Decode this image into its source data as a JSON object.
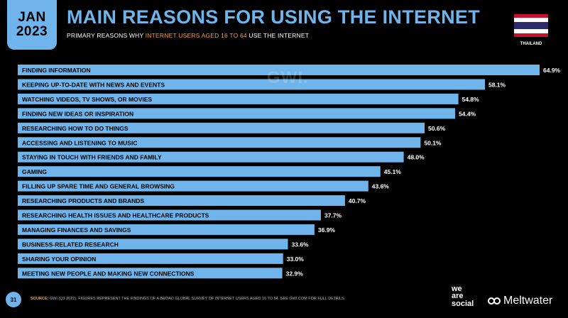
{
  "header": {
    "month": "JAN",
    "year": "2023",
    "title": "MAIN REASONS FOR USING THE INTERNET",
    "subtitle_pre": "PRIMARY REASONS WHY ",
    "subtitle_hl": "INTERNET USERS AGED 16 TO 64",
    "subtitle_post": " USE THE INTERNET",
    "country": "THAILAND"
  },
  "watermark": "GWI.",
  "footer": {
    "page": "31",
    "source_label": "SOURCE:",
    "source_text": " GWI (Q3 2022). FIGURES REPRESENT THE FINDINGS OF A BROAD GLOBAL SURVEY OF INTERNET USERS AGED 16 TO 64. SEE GWI.COM FOR FULL DETAILS.",
    "brand1_line1": "we",
    "brand1_line2": "are",
    "brand1_line3": "social",
    "brand2": "Meltwater"
  },
  "colors": {
    "bar": "#6fb4ea",
    "accent": "#f2a23a",
    "background": "#000000"
  },
  "chart_data": {
    "type": "bar",
    "orientation": "horizontal",
    "categories": [
      "FINDING INFORMATION",
      "KEEPING UP-TO-DATE WITH NEWS AND EVENTS",
      "WATCHING VIDEOS, TV SHOWS, OR MOVIES",
      "FINDING NEW IDEAS OR INSPIRATION",
      "RESEARCHING HOW TO DO THINGS",
      "ACCESSING AND LISTENING TO MUSIC",
      "STAYING IN TOUCH WITH FRIENDS AND FAMILY",
      "GAMING",
      "FILLING UP SPARE TIME AND GENERAL BROWSING",
      "RESEARCHING PRODUCTS AND BRANDS",
      "RESEARCHING HEALTH ISSUES AND HEALTHCARE PRODUCTS",
      "MANAGING FINANCES AND SAVINGS",
      "BUSINESS-RELATED RESEARCH",
      "SHARING YOUR OPINION",
      "MEETING NEW PEOPLE AND MAKING NEW CONNECTIONS"
    ],
    "values": [
      64.9,
      58.1,
      54.8,
      54.4,
      50.6,
      50.1,
      48.0,
      45.1,
      43.6,
      40.7,
      37.7,
      36.9,
      33.6,
      33.0,
      32.9
    ],
    "labels": [
      "64.9%",
      "58.1%",
      "54.8%",
      "54.4%",
      "50.6%",
      "50.1%",
      "48.0%",
      "45.1%",
      "43.6%",
      "40.7%",
      "37.7%",
      "36.9%",
      "33.6%",
      "33.0%",
      "32.9%"
    ],
    "xlim": [
      0,
      64.9
    ],
    "grid": false
  }
}
